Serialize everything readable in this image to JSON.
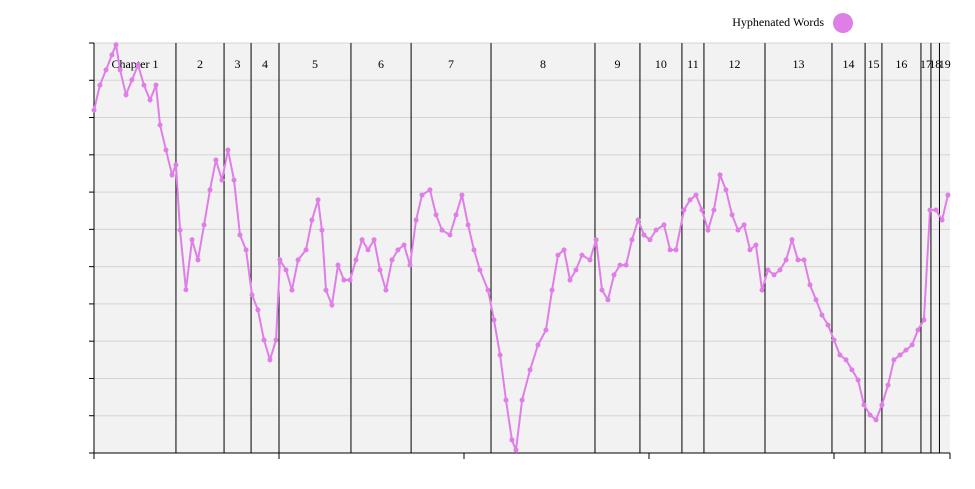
{
  "chart_data": {
    "type": "line",
    "xlim": [
      0,
      4.627
    ],
    "xticks": [
      0,
      1,
      2,
      3,
      4,
      4.627
    ],
    "ylim": [
      0,
      11
    ],
    "yticks": [
      0,
      1,
      2,
      3,
      4,
      5,
      6,
      7,
      8,
      9,
      10,
      11
    ],
    "grid": true,
    "legend": "top-right",
    "chapters": [
      {
        "label": "Chapter 1",
        "start": 0
      },
      {
        "label": "2",
        "start": 0.443
      },
      {
        "label": "3",
        "start": 0.703
      },
      {
        "label": "4",
        "start": 0.849
      },
      {
        "label": "5",
        "start": 1.0
      },
      {
        "label": "6",
        "start": 1.389
      },
      {
        "label": "7",
        "start": 1.714
      },
      {
        "label": "8",
        "start": 2.146
      },
      {
        "label": "9",
        "start": 2.708
      },
      {
        "label": "10",
        "start": 2.951
      },
      {
        "label": "11",
        "start": 3.178
      },
      {
        "label": "12",
        "start": 3.297
      },
      {
        "label": "13",
        "start": 3.627
      },
      {
        "label": "14",
        "start": 3.989
      },
      {
        "label": "15",
        "start": 4.168
      },
      {
        "label": "16",
        "start": 4.259
      },
      {
        "label": "17",
        "start": 4.47
      },
      {
        "label": "18",
        "start": 4.524
      },
      {
        "label": "19",
        "start": 4.57
      }
    ],
    "x": [
      0,
      0.032,
      0.065,
      0.097,
      0.119,
      0.141,
      0.173,
      0.205,
      0.238,
      0.27,
      0.303,
      0.335,
      0.357,
      0.389,
      0.422,
      0.443,
      0.465,
      0.497,
      0.53,
      0.562,
      0.595,
      0.627,
      0.659,
      0.692,
      0.724,
      0.757,
      0.789,
      0.822,
      0.854,
      0.886,
      0.919,
      0.951,
      0.984,
      1.005,
      1.038,
      1.07,
      1.103,
      1.146,
      1.178,
      1.211,
      1.232,
      1.254,
      1.286,
      1.319,
      1.351,
      1.384,
      1.416,
      1.449,
      1.481,
      1.514,
      1.546,
      1.578,
      1.611,
      1.643,
      1.676,
      1.708,
      1.741,
      1.773,
      1.816,
      1.849,
      1.881,
      1.924,
      1.957,
      1.989,
      2.022,
      2.054,
      2.086,
      2.13,
      2.162,
      2.195,
      2.227,
      2.259,
      2.281,
      2.314,
      2.357,
      2.4,
      2.443,
      2.476,
      2.508,
      2.541,
      2.573,
      2.605,
      2.638,
      2.681,
      2.714,
      2.746,
      2.778,
      2.811,
      2.843,
      2.876,
      2.908,
      2.941,
      2.973,
      3.005,
      3.038,
      3.081,
      3.114,
      3.146,
      3.189,
      3.222,
      3.254,
      3.286,
      3.319,
      3.351,
      3.384,
      3.416,
      3.449,
      3.481,
      3.514,
      3.546,
      3.578,
      3.611,
      3.643,
      3.676,
      3.708,
      3.741,
      3.773,
      3.805,
      3.838,
      3.87,
      3.903,
      3.935,
      3.968,
      4.0,
      4.032,
      4.065,
      4.097,
      4.13,
      4.162,
      4.195,
      4.227,
      4.259,
      4.292,
      4.324,
      4.357,
      4.389,
      4.422,
      4.454,
      4.486,
      4.519,
      4.551,
      4.584,
      4.616
    ],
    "series": [
      {
        "name": "Hyphenated Words",
        "color": "#e07ee8",
        "values": [
          9.2,
          9.87,
          10.28,
          10.68,
          10.95,
          10.28,
          9.61,
          10.01,
          10.41,
          9.87,
          9.47,
          9.87,
          8.8,
          8.13,
          7.46,
          7.73,
          5.98,
          4.38,
          5.72,
          5.18,
          6.12,
          7.06,
          7.86,
          7.32,
          8.13,
          7.32,
          5.85,
          5.45,
          4.24,
          3.84,
          3.03,
          2.5,
          3.03,
          5.18,
          4.91,
          4.37,
          5.18,
          5.45,
          6.25,
          6.79,
          5.98,
          4.37,
          3.97,
          5.04,
          4.64,
          4.64,
          5.18,
          5.72,
          5.45,
          5.72,
          4.91,
          4.37,
          5.18,
          5.45,
          5.58,
          5.04,
          6.25,
          6.92,
          7.06,
          6.39,
          5.98,
          5.85,
          6.39,
          6.92,
          6.12,
          5.45,
          4.91,
          4.37,
          3.57,
          2.63,
          1.42,
          0.35,
          0.08,
          1.42,
          2.23,
          2.9,
          3.3,
          4.37,
          5.31,
          5.45,
          4.64,
          4.91,
          5.31,
          5.18,
          5.72,
          4.37,
          4.11,
          4.78,
          5.04,
          5.04,
          5.72,
          6.25,
          5.85,
          5.72,
          5.98,
          6.12,
          5.45,
          5.45,
          6.52,
          6.79,
          6.92,
          6.52,
          5.98,
          6.52,
          7.46,
          7.06,
          6.39,
          5.98,
          6.12,
          5.45,
          5.58,
          4.37,
          4.91,
          4.78,
          4.91,
          5.18,
          5.72,
          5.18,
          5.18,
          4.51,
          4.11,
          3.7,
          3.43,
          3.03,
          2.63,
          2.5,
          2.23,
          1.96,
          1.29,
          1.02,
          0.89,
          1.29,
          1.82,
          2.5,
          2.63,
          2.76,
          2.9,
          3.3,
          3.57,
          6.52,
          6.52,
          6.25,
          6.92
        ]
      }
    ]
  }
}
